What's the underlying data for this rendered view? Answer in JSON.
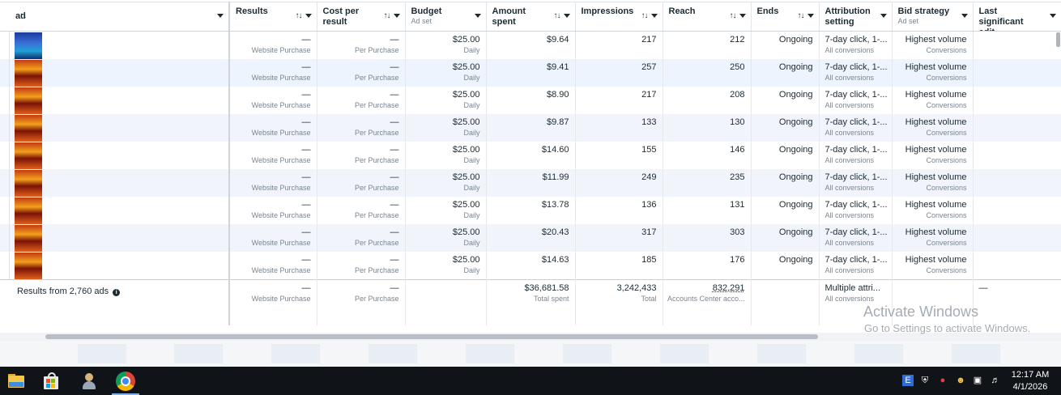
{
  "columns": [
    {
      "label": "ad",
      "sub": "",
      "sortable": true
    },
    {
      "label": "Results",
      "sub": "",
      "sortable": true
    },
    {
      "label": "Cost per result",
      "sub": "",
      "sortable": true
    },
    {
      "label": "Budget",
      "sub": "Ad set",
      "sortable": false
    },
    {
      "label": "Amount spent",
      "sub": "",
      "sortable": true
    },
    {
      "label": "Impressions",
      "sub": "",
      "sortable": true
    },
    {
      "label": "Reach",
      "sub": "",
      "sortable": true
    },
    {
      "label": "Ends",
      "sub": "",
      "sortable": true
    },
    {
      "label": "Attribution setting",
      "sub": "",
      "sortable": false
    },
    {
      "label": "Bid strategy",
      "sub": "Ad set",
      "sortable": false
    },
    {
      "label": "Last significant edit",
      "sub": "",
      "sortable": false
    }
  ],
  "rows": [
    {
      "results": "—",
      "results_sub": "Website Purchase",
      "cpr": "—",
      "cpr_sub": "Per Purchase",
      "budget": "$25.00",
      "budget_sub": "Daily",
      "spent": "$9.64",
      "impressions": "217",
      "reach": "212",
      "ends": "Ongoing",
      "attribution": "7-day click, 1-...",
      "attribution_sub": "All conversions",
      "bid": "Highest volume",
      "bid_sub": "Conversions"
    },
    {
      "results": "—",
      "results_sub": "Website Purchase",
      "cpr": "—",
      "cpr_sub": "Per Purchase",
      "budget": "$25.00",
      "budget_sub": "Daily",
      "spent": "$9.41",
      "impressions": "257",
      "reach": "250",
      "ends": "Ongoing",
      "attribution": "7-day click, 1-...",
      "attribution_sub": "All conversions",
      "bid": "Highest volume",
      "bid_sub": "Conversions"
    },
    {
      "results": "—",
      "results_sub": "Website Purchase",
      "cpr": "—",
      "cpr_sub": "Per Purchase",
      "budget": "$25.00",
      "budget_sub": "Daily",
      "spent": "$8.90",
      "impressions": "217",
      "reach": "208",
      "ends": "Ongoing",
      "attribution": "7-day click, 1-...",
      "attribution_sub": "All conversions",
      "bid": "Highest volume",
      "bid_sub": "Conversions"
    },
    {
      "results": "—",
      "results_sub": "Website Purchase",
      "cpr": "—",
      "cpr_sub": "Per Purchase",
      "budget": "$25.00",
      "budget_sub": "Daily",
      "spent": "$9.87",
      "impressions": "133",
      "reach": "130",
      "ends": "Ongoing",
      "attribution": "7-day click, 1-...",
      "attribution_sub": "All conversions",
      "bid": "Highest volume",
      "bid_sub": "Conversions"
    },
    {
      "results": "—",
      "results_sub": "Website Purchase",
      "cpr": "—",
      "cpr_sub": "Per Purchase",
      "budget": "$25.00",
      "budget_sub": "Daily",
      "spent": "$14.60",
      "impressions": "155",
      "reach": "146",
      "ends": "Ongoing",
      "attribution": "7-day click, 1-...",
      "attribution_sub": "All conversions",
      "bid": "Highest volume",
      "bid_sub": "Conversions"
    },
    {
      "results": "—",
      "results_sub": "Website Purchase",
      "cpr": "—",
      "cpr_sub": "Per Purchase",
      "budget": "$25.00",
      "budget_sub": "Daily",
      "spent": "$11.99",
      "impressions": "249",
      "reach": "235",
      "ends": "Ongoing",
      "attribution": "7-day click, 1-...",
      "attribution_sub": "All conversions",
      "bid": "Highest volume",
      "bid_sub": "Conversions"
    },
    {
      "results": "—",
      "results_sub": "Website Purchase",
      "cpr": "—",
      "cpr_sub": "Per Purchase",
      "budget": "$25.00",
      "budget_sub": "Daily",
      "spent": "$13.78",
      "impressions": "136",
      "reach": "131",
      "ends": "Ongoing",
      "attribution": "7-day click, 1-...",
      "attribution_sub": "All conversions",
      "bid": "Highest volume",
      "bid_sub": "Conversions"
    },
    {
      "results": "—",
      "results_sub": "Website Purchase",
      "cpr": "—",
      "cpr_sub": "Per Purchase",
      "budget": "$25.00",
      "budget_sub": "Daily",
      "spent": "$20.43",
      "impressions": "317",
      "reach": "303",
      "ends": "Ongoing",
      "attribution": "7-day click, 1-...",
      "attribution_sub": "All conversions",
      "bid": "Highest volume",
      "bid_sub": "Conversions"
    },
    {
      "results": "—",
      "results_sub": "Website Purchase",
      "cpr": "—",
      "cpr_sub": "Per Purchase",
      "budget": "$25.00",
      "budget_sub": "Daily",
      "spent": "$14.63",
      "impressions": "185",
      "reach": "176",
      "ends": "Ongoing",
      "attribution": "7-day click, 1-...",
      "attribution_sub": "All conversions",
      "bid": "Highest volume",
      "bid_sub": "Conversions"
    }
  ],
  "totals": {
    "label": "Results from 2,760 ads",
    "results": "—",
    "results_sub": "Website Purchase",
    "cpr": "—",
    "cpr_sub": "Per Purchase",
    "spent": "$36,681.58",
    "spent_sub": "Total spent",
    "impressions": "3,242,433",
    "impressions_sub": "Total",
    "reach": "832,291",
    "reach_sub": "Accounts Center acco...",
    "attribution": "Multiple attri...",
    "attribution_sub": "All conversions",
    "last_edit": "—"
  },
  "watermark": {
    "title": "Activate Windows",
    "subtitle": "Go to Settings to activate Windows."
  },
  "taskbar": {
    "apps": [
      "file-explorer",
      "microsoft-store",
      "user-app",
      "chrome"
    ],
    "time": "12:17 AM",
    "date": "4/1/2026"
  },
  "colors": {
    "header_text": "#1c2b33",
    "muted": "#7a8590",
    "row_alt": "#f1f5fb",
    "taskbar": "#101418"
  }
}
